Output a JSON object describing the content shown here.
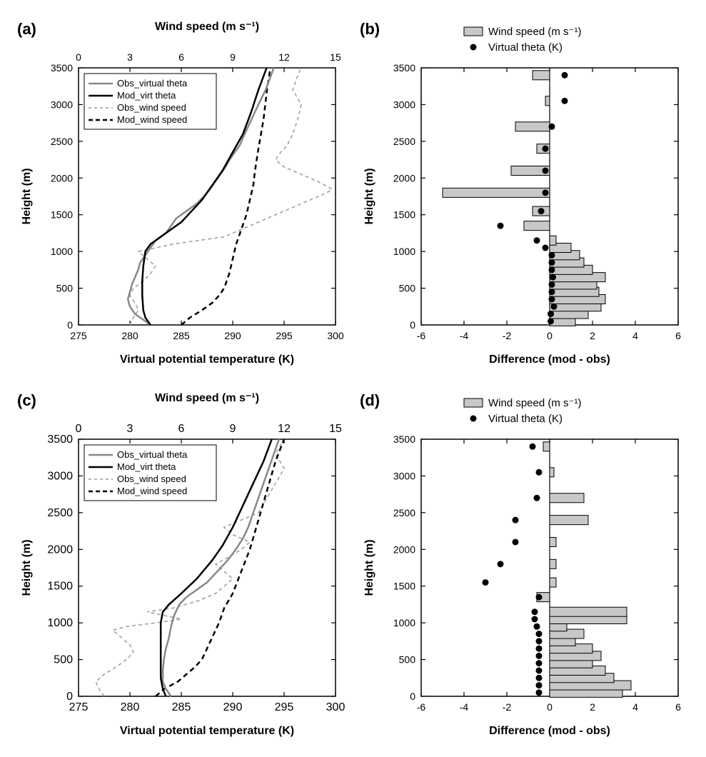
{
  "panels": {
    "a": {
      "label": "(a)",
      "ylabel": "Height (m)",
      "ylim": [
        0,
        3500
      ],
      "ytick_step": 500,
      "xlabel_bottom": "Virtual potential temperature (K)",
      "xlim_bottom": [
        275,
        300
      ],
      "xtick_step_bottom": 5,
      "xlabel_top": "Wind speed (m s⁻¹)",
      "xlim_top": [
        0,
        15
      ],
      "xtick_step_top": 3,
      "label_fontsize": 16,
      "tick_fontsize": 14,
      "legend": [
        {
          "label": "Obs_virtual theta",
          "color": "#888888",
          "dash": "solid",
          "lw": 2.5
        },
        {
          "label": "Mod_virt theta",
          "color": "#000000",
          "dash": "solid",
          "lw": 2.5
        },
        {
          "label": "Obs_wind speed",
          "color": "#aaaaaa",
          "dash": "4,4",
          "lw": 1.8
        },
        {
          "label": "Mod_wind speed",
          "color": "#000000",
          "dash": "6,4",
          "lw": 2.5
        }
      ],
      "obs_theta": [
        [
          282.0,
          0
        ],
        [
          281.2,
          80
        ],
        [
          280.5,
          150
        ],
        [
          280.0,
          250
        ],
        [
          279.8,
          350
        ],
        [
          280.0,
          450
        ],
        [
          280.2,
          550
        ],
        [
          280.5,
          650
        ],
        [
          280.8,
          750
        ],
        [
          281.0,
          850
        ],
        [
          281.5,
          950
        ],
        [
          282.0,
          1050
        ],
        [
          282.5,
          1150
        ],
        [
          283.5,
          1250
        ],
        [
          284.0,
          1350
        ],
        [
          284.5,
          1450
        ],
        [
          285.5,
          1550
        ],
        [
          286.5,
          1650
        ],
        [
          287.2,
          1750
        ],
        [
          287.8,
          1850
        ],
        [
          288.3,
          1950
        ],
        [
          288.8,
          2050
        ],
        [
          289.3,
          2150
        ],
        [
          289.7,
          2250
        ],
        [
          290.2,
          2350
        ],
        [
          290.7,
          2450
        ],
        [
          291.0,
          2550
        ],
        [
          291.5,
          2700
        ],
        [
          292.0,
          2850
        ],
        [
          292.5,
          3000
        ],
        [
          293.2,
          3200
        ],
        [
          294.0,
          3500
        ]
      ],
      "mod_theta": [
        [
          282.0,
          0
        ],
        [
          281.5,
          100
        ],
        [
          281.3,
          200
        ],
        [
          281.2,
          400
        ],
        [
          281.2,
          600
        ],
        [
          281.3,
          800
        ],
        [
          281.5,
          1000
        ],
        [
          282.0,
          1100
        ],
        [
          283.0,
          1200
        ],
        [
          284.0,
          1300
        ],
        [
          285.0,
          1400
        ],
        [
          286.0,
          1550
        ],
        [
          287.0,
          1700
        ],
        [
          288.0,
          1900
        ],
        [
          289.0,
          2100
        ],
        [
          290.0,
          2350
        ],
        [
          291.0,
          2600
        ],
        [
          291.8,
          2900
        ],
        [
          292.5,
          3200
        ],
        [
          293.3,
          3500
        ]
      ],
      "obs_wind": [
        [
          3.0,
          0
        ],
        [
          3.2,
          100
        ],
        [
          3.5,
          200
        ],
        [
          3.3,
          300
        ],
        [
          3.0,
          400
        ],
        [
          3.2,
          500
        ],
        [
          3.8,
          600
        ],
        [
          4.2,
          700
        ],
        [
          4.5,
          800
        ],
        [
          4.0,
          900
        ],
        [
          3.5,
          1000
        ],
        [
          4.5,
          1050
        ],
        [
          5.5,
          1100
        ],
        [
          7.0,
          1150
        ],
        [
          8.5,
          1200
        ],
        [
          9.5,
          1300
        ],
        [
          10.5,
          1400
        ],
        [
          11.5,
          1500
        ],
        [
          12.5,
          1600
        ],
        [
          13.5,
          1700
        ],
        [
          14.5,
          1800
        ],
        [
          14.8,
          1850
        ],
        [
          14.0,
          1950
        ],
        [
          13.0,
          2050
        ],
        [
          12.0,
          2150
        ],
        [
          11.5,
          2250
        ],
        [
          11.8,
          2350
        ],
        [
          12.2,
          2450
        ],
        [
          12.5,
          2600
        ],
        [
          12.8,
          2800
        ],
        [
          13.0,
          3000
        ],
        [
          12.5,
          3200
        ],
        [
          12.8,
          3400
        ],
        [
          13.0,
          3500
        ]
      ],
      "mod_wind": [
        [
          6.0,
          0
        ],
        [
          6.5,
          100
        ],
        [
          7.2,
          200
        ],
        [
          7.8,
          300
        ],
        [
          8.2,
          400
        ],
        [
          8.5,
          500
        ],
        [
          8.8,
          700
        ],
        [
          9.0,
          900
        ],
        [
          9.2,
          1100
        ],
        [
          9.5,
          1300
        ],
        [
          9.8,
          1500
        ],
        [
          10.0,
          1700
        ],
        [
          10.2,
          1900
        ],
        [
          10.3,
          2100
        ],
        [
          10.5,
          2400
        ],
        [
          10.8,
          2800
        ],
        [
          11.0,
          3200
        ],
        [
          11.2,
          3500
        ]
      ]
    },
    "b": {
      "label": "(b)",
      "ylabel": "Height (m)",
      "ylim": [
        0,
        3500
      ],
      "ytick_step": 500,
      "xlabel": "Difference (mod - obs)",
      "xlim": [
        -6,
        6
      ],
      "xtick_step": 2,
      "legend_ws": "Wind speed (m s⁻¹)",
      "legend_theta": "Virtual theta (K)",
      "bar_color": "#c8c8c8",
      "bar_border": "#000000",
      "marker_color": "#000000",
      "marker_size": 4.5,
      "heights": [
        50,
        150,
        250,
        350,
        450,
        550,
        650,
        750,
        850,
        950,
        1050,
        1150,
        1350,
        1550,
        1800,
        2100,
        2400,
        2700,
        3050,
        3400
      ],
      "ws_diff": [
        1.2,
        1.8,
        2.4,
        2.6,
        2.3,
        2.2,
        2.6,
        2.0,
        1.6,
        1.4,
        1.0,
        0.3,
        -1.2,
        -0.8,
        -5.0,
        -1.8,
        -0.6,
        -1.6,
        -0.2,
        -0.8
      ],
      "theta_diff": [
        0.05,
        0.05,
        0.2,
        0.1,
        0.1,
        0.1,
        0.15,
        0.1,
        0.1,
        0.1,
        -0.2,
        -0.6,
        -2.3,
        -0.4,
        -0.2,
        -0.2,
        -0.2,
        0.1,
        0.7,
        0.7
      ]
    },
    "c": {
      "label": "(c)",
      "ylabel": "Height (m)",
      "ylim": [
        0,
        3500
      ],
      "ytick_step": 500,
      "xlabel_bottom": "Virtual potential temperature (K)",
      "xlim_bottom": [
        275,
        300
      ],
      "xtick_step_bottom": 5,
      "xlabel_top": "Wind speed (m s⁻¹)",
      "xlim_top": [
        0,
        15
      ],
      "xtick_step_top": 3,
      "legend": [
        {
          "label": "Obs_virtual theta",
          "color": "#888888",
          "dash": "solid",
          "lw": 2.5
        },
        {
          "label": "Mod_virt theta",
          "color": "#000000",
          "dash": "solid",
          "lw": 2.5
        },
        {
          "label": "Obs_wind speed",
          "color": "#aaaaaa",
          "dash": "4,4",
          "lw": 1.8
        },
        {
          "label": "Mod_wind speed",
          "color": "#000000",
          "dash": "6,4",
          "lw": 2.5
        }
      ],
      "obs_theta": [
        [
          284.0,
          0
        ],
        [
          283.5,
          100
        ],
        [
          283.2,
          200
        ],
        [
          283.2,
          350
        ],
        [
          283.3,
          500
        ],
        [
          283.5,
          650
        ],
        [
          283.8,
          800
        ],
        [
          284.0,
          950
        ],
        [
          284.3,
          1100
        ],
        [
          284.8,
          1250
        ],
        [
          285.5,
          1350
        ],
        [
          286.5,
          1450
        ],
        [
          287.5,
          1550
        ],
        [
          288.5,
          1700
        ],
        [
          289.5,
          1850
        ],
        [
          290.3,
          2000
        ],
        [
          291.0,
          2150
        ],
        [
          291.5,
          2300
        ],
        [
          292.0,
          2500
        ],
        [
          292.5,
          2700
        ],
        [
          293.0,
          2900
        ],
        [
          293.5,
          3100
        ],
        [
          294.0,
          3300
        ],
        [
          294.5,
          3500
        ]
      ],
      "mod_theta": [
        [
          283.5,
          0
        ],
        [
          283.2,
          100
        ],
        [
          283.0,
          250
        ],
        [
          283.0,
          500
        ],
        [
          283.0,
          750
        ],
        [
          283.0,
          1000
        ],
        [
          283.2,
          1150
        ],
        [
          283.8,
          1250
        ],
        [
          285.0,
          1400
        ],
        [
          286.5,
          1600
        ],
        [
          288.0,
          1850
        ],
        [
          289.0,
          2050
        ],
        [
          290.0,
          2300
        ],
        [
          291.0,
          2600
        ],
        [
          292.0,
          2900
        ],
        [
          293.0,
          3200
        ],
        [
          293.8,
          3500
        ]
      ],
      "obs_wind": [
        [
          1.5,
          0
        ],
        [
          1.2,
          100
        ],
        [
          1.0,
          200
        ],
        [
          1.5,
          300
        ],
        [
          2.2,
          400
        ],
        [
          2.8,
          500
        ],
        [
          3.2,
          600
        ],
        [
          3.0,
          700
        ],
        [
          2.5,
          800
        ],
        [
          2.0,
          900
        ],
        [
          2.8,
          950
        ],
        [
          4.5,
          1000
        ],
        [
          6.0,
          1050
        ],
        [
          5.0,
          1100
        ],
        [
          4.0,
          1150
        ],
        [
          5.5,
          1200
        ],
        [
          7.0,
          1300
        ],
        [
          8.0,
          1400
        ],
        [
          8.5,
          1500
        ],
        [
          9.0,
          1600
        ],
        [
          8.5,
          1700
        ],
        [
          8.0,
          1800
        ],
        [
          8.8,
          1900
        ],
        [
          9.5,
          2000
        ],
        [
          10.0,
          2100
        ],
        [
          9.0,
          2200
        ],
        [
          8.5,
          2300
        ],
        [
          9.5,
          2400
        ],
        [
          10.5,
          2500
        ],
        [
          11.0,
          2700
        ],
        [
          11.5,
          2900
        ],
        [
          12.0,
          3100
        ],
        [
          11.5,
          3300
        ],
        [
          12.0,
          3500
        ]
      ],
      "mod_wind": [
        [
          4.5,
          0
        ],
        [
          5.0,
          100
        ],
        [
          5.8,
          200
        ],
        [
          6.3,
          300
        ],
        [
          6.8,
          400
        ],
        [
          7.2,
          500
        ],
        [
          7.5,
          650
        ],
        [
          7.8,
          800
        ],
        [
          8.2,
          1000
        ],
        [
          8.5,
          1200
        ],
        [
          9.0,
          1400
        ],
        [
          9.5,
          1700
        ],
        [
          10.0,
          2000
        ],
        [
          10.5,
          2400
        ],
        [
          11.0,
          2800
        ],
        [
          11.5,
          3200
        ],
        [
          12.0,
          3500
        ]
      ]
    },
    "d": {
      "label": "(d)",
      "ylabel": "Height (m)",
      "ylim": [
        0,
        3500
      ],
      "ytick_step": 500,
      "xlabel": "Difference (mod - obs)",
      "xlim": [
        -6,
        6
      ],
      "xtick_step": 2,
      "legend_ws": "Wind speed (m s⁻¹)",
      "legend_theta": "Virtual theta (K)",
      "bar_color": "#c8c8c8",
      "bar_border": "#000000",
      "marker_color": "#000000",
      "marker_size": 4.5,
      "heights": [
        50,
        150,
        250,
        350,
        450,
        550,
        650,
        750,
        850,
        950,
        1050,
        1150,
        1350,
        1550,
        1800,
        2100,
        2400,
        2700,
        3050,
        3400
      ],
      "ws_diff": [
        3.4,
        3.8,
        3.0,
        2.6,
        2.0,
        2.4,
        2.0,
        1.2,
        1.6,
        0.8,
        3.6,
        3.6,
        -0.6,
        0.3,
        0.3,
        0.3,
        1.8,
        1.6,
        0.2,
        -0.3
      ],
      "theta_diff": [
        -0.5,
        -0.5,
        -0.5,
        -0.5,
        -0.5,
        -0.5,
        -0.5,
        -0.5,
        -0.5,
        -0.6,
        -0.7,
        -0.7,
        -0.5,
        -3.0,
        -2.3,
        -1.6,
        -1.6,
        -0.6,
        -0.5,
        -0.8
      ]
    }
  },
  "colors": {
    "axis": "#000000",
    "text": "#000000",
    "bg": "#ffffff"
  }
}
